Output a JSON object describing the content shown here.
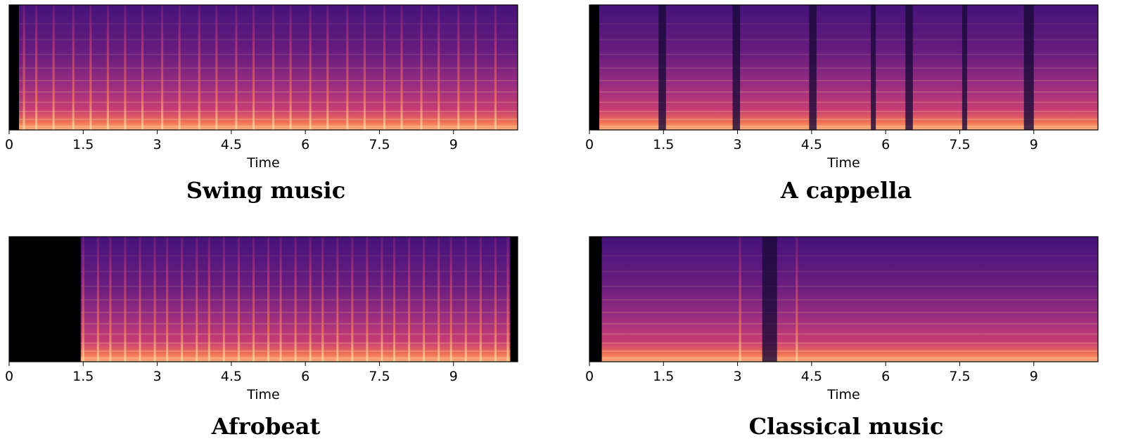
{
  "chart_data": [
    {
      "type": "heatmap",
      "title": "Swing music",
      "xlabel": "Time",
      "ylabel": "",
      "xlim": [
        0,
        10.3
      ],
      "xticks": [
        0,
        1.5,
        3,
        4.5,
        6,
        7.5,
        9
      ],
      "xtick_labels": [
        "0",
        "1.5",
        "3",
        "4.5",
        "6",
        "7.5",
        "9"
      ],
      "yticks": [],
      "colormap": "magma",
      "silence_start": 0.2,
      "silence_end": 10.3,
      "onset_times": [
        0.3,
        0.55,
        0.9,
        1.3,
        1.65,
        2.0,
        2.35,
        2.7,
        3.1,
        3.45,
        3.85,
        4.2,
        4.6,
        4.95,
        5.35,
        5.7,
        6.1,
        6.45,
        6.85,
        7.2,
        7.6,
        7.95,
        8.35,
        8.7,
        9.1,
        9.45,
        9.85
      ]
    },
    {
      "type": "heatmap",
      "title": "A cappella",
      "xlabel": "Time",
      "ylabel": "",
      "xlim": [
        0,
        10.3
      ],
      "xticks": [
        0,
        1.5,
        3,
        4.5,
        6,
        7.5,
        9
      ],
      "xtick_labels": [
        "0",
        "1.5",
        "3",
        "4.5",
        "6",
        "7.5",
        "9"
      ],
      "yticks": [],
      "colormap": "magma",
      "silence_start": 0.2,
      "silence_end": 10.3,
      "dark_gaps": [
        [
          1.4,
          1.55
        ],
        [
          2.9,
          3.05
        ],
        [
          4.45,
          4.6
        ],
        [
          5.7,
          5.8
        ],
        [
          6.4,
          6.55
        ],
        [
          7.55,
          7.65
        ],
        [
          8.8,
          9.0
        ]
      ],
      "onset_times": []
    },
    {
      "type": "heatmap",
      "title": "Afrobeat",
      "xlabel": "Time",
      "ylabel": "",
      "xlim": [
        0,
        10.3
      ],
      "xticks": [
        0,
        1.5,
        3,
        4.5,
        6,
        7.5,
        9
      ],
      "xtick_labels": [
        "0",
        "1.5",
        "3",
        "4.5",
        "6",
        "7.5",
        "9"
      ],
      "yticks": [],
      "colormap": "magma",
      "silence_start": 1.45,
      "silence_end": 10.15,
      "onset_times": [
        1.5,
        1.8,
        2.05,
        2.35,
        2.65,
        2.95,
        3.2,
        3.5,
        3.8,
        4.05,
        4.35,
        4.65,
        4.95,
        5.25,
        5.5,
        5.8,
        6.1,
        6.35,
        6.65,
        6.95,
        7.25,
        7.55,
        7.8,
        8.1,
        8.4,
        8.7,
        8.95,
        9.25,
        9.55,
        9.85,
        10.1
      ]
    },
    {
      "type": "heatmap",
      "title": "Classical music",
      "xlabel": "Time",
      "ylabel": "",
      "xlim": [
        0,
        10.3
      ],
      "xticks": [
        0,
        1.5,
        3,
        4.5,
        6,
        7.5,
        9
      ],
      "xtick_labels": [
        "0",
        "1.5",
        "3",
        "4.5",
        "6",
        "7.5",
        "9"
      ],
      "yticks": [],
      "colormap": "magma",
      "silence_start": 0.25,
      "silence_end": 10.3,
      "dark_gaps": [
        [
          3.5,
          3.8
        ]
      ],
      "onset_times": [
        3.05,
        4.2
      ]
    }
  ]
}
